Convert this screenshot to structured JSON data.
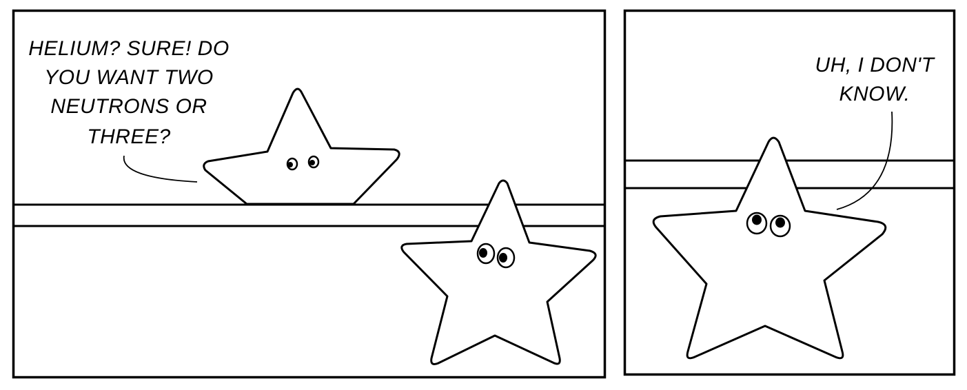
{
  "panels": [
    {
      "id": "panel-1",
      "speech": {
        "lines": [
          "HELIUM? SURE! DO",
          "YOU WANT TWO",
          "NEUTRONS OR",
          "THREE?"
        ]
      },
      "characters": [
        "star-speaker",
        "star-listener"
      ]
    },
    {
      "id": "panel-2",
      "speech": {
        "lines": [
          "UH, I DON'T",
          "KNOW."
        ]
      },
      "characters": [
        "star-listener-closeup"
      ]
    }
  ],
  "colors": {
    "ink": "#000000",
    "paper": "#ffffff"
  }
}
